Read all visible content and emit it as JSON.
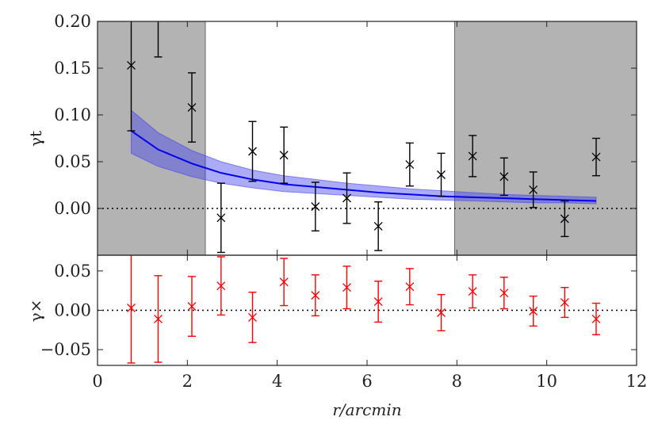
{
  "chart_data": [
    {
      "type": "scatter",
      "panel": "top",
      "ylabel": "γt",
      "ylim": [
        -0.05,
        0.2
      ],
      "xlim": [
        0,
        12
      ],
      "yticks": [
        0.0,
        0.05,
        0.1,
        0.15,
        0.2
      ],
      "ytick_labels": [
        "0.00",
        "0.05",
        "0.10",
        "0.15",
        "0.20"
      ],
      "shaded_regions": [
        [
          0,
          2.4
        ],
        [
          7.95,
          12
        ]
      ],
      "zero_line": true,
      "series": [
        {
          "name": "gamma_t",
          "color": "#000000",
          "x": [
            0.75,
            1.35,
            2.1,
            2.75,
            3.45,
            4.15,
            4.85,
            5.55,
            6.25,
            6.95,
            7.65,
            8.35,
            9.05,
            9.7,
            10.4,
            11.1
          ],
          "y": [
            0.153,
            0.22,
            0.108,
            -0.01,
            0.061,
            0.057,
            0.002,
            0.011,
            -0.019,
            0.047,
            0.036,
            0.056,
            0.034,
            0.02,
            -0.011,
            0.055
          ],
          "yerr": [
            0.07,
            0.058,
            0.037,
            0.037,
            0.032,
            0.03,
            0.026,
            0.027,
            0.026,
            0.023,
            0.023,
            0.022,
            0.02,
            0.019,
            0.019,
            0.02
          ]
        }
      ],
      "model": {
        "name": "model",
        "color": "#0000ee",
        "band_color": "#4444ee",
        "x": [
          0.75,
          1.35,
          2.1,
          2.75,
          3.45,
          4.15,
          4.85,
          5.55,
          6.25,
          6.95,
          7.65,
          8.35,
          9.05,
          9.7,
          10.4,
          11.1
        ],
        "y": [
          0.083,
          0.063,
          0.048,
          0.038,
          0.031,
          0.026,
          0.023,
          0.02,
          0.017,
          0.015,
          0.013,
          0.012,
          0.011,
          0.01,
          0.009,
          0.008
        ],
        "lower": [
          0.059,
          0.045,
          0.034,
          0.027,
          0.022,
          0.018,
          0.016,
          0.014,
          0.012,
          0.01,
          0.009,
          0.008,
          0.007,
          0.006,
          0.006,
          0.005
        ],
        "upper": [
          0.105,
          0.081,
          0.062,
          0.05,
          0.041,
          0.035,
          0.031,
          0.027,
          0.024,
          0.021,
          0.019,
          0.017,
          0.015,
          0.014,
          0.013,
          0.012
        ]
      }
    },
    {
      "type": "scatter",
      "panel": "bottom",
      "ylabel": "γ×",
      "xlabel": "r/arcmin",
      "ylim": [
        -0.07,
        0.07
      ],
      "xlim": [
        0,
        12
      ],
      "xticks": [
        0,
        2,
        4,
        6,
        8,
        10,
        12
      ],
      "xtick_labels": [
        "0",
        "2",
        "4",
        "6",
        "8",
        "10",
        "12"
      ],
      "yticks": [
        -0.05,
        0.0,
        0.05
      ],
      "ytick_labels": [
        "−0.05",
        "0.00",
        "0.05"
      ],
      "zero_line": true,
      "series": [
        {
          "name": "gamma_x",
          "color": "#ff0000",
          "x": [
            0.75,
            1.35,
            2.1,
            2.75,
            3.45,
            4.15,
            4.85,
            5.55,
            6.25,
            6.95,
            7.65,
            8.35,
            9.05,
            9.7,
            10.4,
            11.1
          ],
          "y": [
            0.003,
            -0.011,
            0.005,
            0.031,
            -0.009,
            0.036,
            0.019,
            0.029,
            0.011,
            0.03,
            -0.003,
            0.024,
            0.022,
            -0.001,
            0.01,
            -0.011
          ],
          "yerr": [
            0.07,
            0.055,
            0.038,
            0.037,
            0.032,
            0.03,
            0.026,
            0.027,
            0.026,
            0.023,
            0.023,
            0.021,
            0.02,
            0.019,
            0.019,
            0.02
          ]
        }
      ]
    }
  ]
}
